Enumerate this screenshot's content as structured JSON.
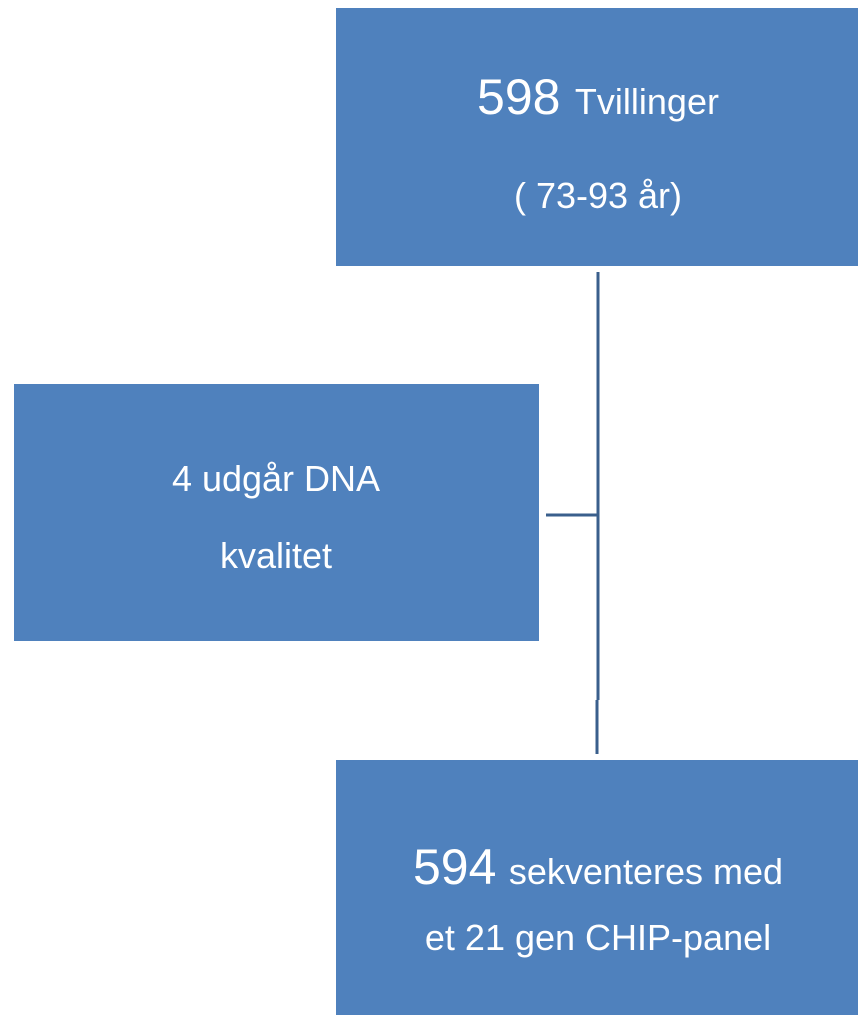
{
  "nodes": [
    {
      "number": "598",
      "label": "Tvillinger",
      "sublabel": "( 73-93 år)"
    },
    {
      "lines": [
        "4 udgår DNA",
        "kvalitet"
      ]
    },
    {
      "number": "594",
      "label": "sekventeres med",
      "sublabel": "et 21 gen CHIP-panel"
    }
  ]
}
